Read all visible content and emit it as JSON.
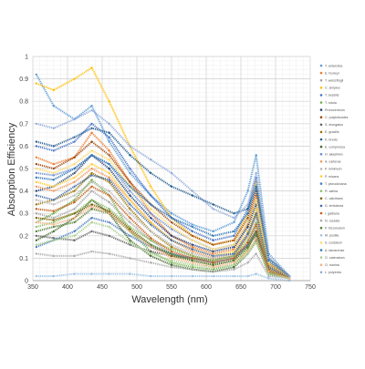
{
  "chart_data": {
    "type": "line",
    "title": "",
    "xlabel": "Wavelength (nm)",
    "ylabel": "Absorption Efficiency",
    "xlim": [
      350,
      750
    ],
    "ylim": [
      0,
      1
    ],
    "xticks": [
      350,
      400,
      450,
      500,
      550,
      600,
      650,
      700,
      750
    ],
    "yticks": [
      0,
      0.1,
      0.2,
      0.3,
      0.4,
      0.5,
      0.6,
      0.7,
      0.8,
      0.9,
      1
    ],
    "grid": true,
    "legend_position": "right",
    "series": [
      {
        "name": "T. antarctica",
        "color": "#5b9bd5",
        "x": [
          355,
          380,
          410,
          435,
          460,
          490,
          520,
          550,
          580,
          610,
          640,
          660,
          672,
          690,
          720
        ],
        "values": [
          0.92,
          0.78,
          0.72,
          0.78,
          0.62,
          0.48,
          0.38,
          0.3,
          0.25,
          0.22,
          0.26,
          0.4,
          0.56,
          0.12,
          0.02
        ]
      },
      {
        "name": "E. huxleyi",
        "color": "#ed7d31",
        "x": [
          355,
          380,
          410,
          435,
          460,
          490,
          520,
          550,
          580,
          610,
          640,
          660,
          672,
          690,
          720
        ],
        "values": [
          0.55,
          0.52,
          0.55,
          0.66,
          0.58,
          0.44,
          0.3,
          0.2,
          0.15,
          0.12,
          0.14,
          0.25,
          0.38,
          0.08,
          0.01
        ]
      },
      {
        "name": "T. weissflogii",
        "color": "#a5a5a5",
        "x": [
          355,
          380,
          410,
          435,
          460,
          490,
          520,
          550,
          580,
          610,
          640,
          660,
          672,
          690,
          720
        ],
        "values": [
          0.3,
          0.28,
          0.32,
          0.4,
          0.35,
          0.26,
          0.18,
          0.12,
          0.09,
          0.07,
          0.09,
          0.16,
          0.24,
          0.05,
          0.01
        ]
      },
      {
        "name": "C. simplex",
        "color": "#ffc000",
        "x": [
          355,
          380,
          410,
          435,
          460,
          490,
          520,
          550,
          580,
          610,
          640,
          660,
          672,
          690,
          720
        ],
        "values": [
          0.88,
          0.85,
          0.9,
          0.95,
          0.8,
          0.6,
          0.42,
          0.28,
          0.2,
          0.16,
          0.18,
          0.3,
          0.44,
          0.1,
          0.02
        ]
      },
      {
        "name": "T. sessilis",
        "color": "#4472c4",
        "x": [
          355,
          380,
          410,
          435,
          460,
          490,
          520,
          550,
          580,
          610,
          640,
          660,
          672,
          690,
          720
        ],
        "values": [
          0.6,
          0.58,
          0.62,
          0.7,
          0.64,
          0.5,
          0.38,
          0.28,
          0.22,
          0.18,
          0.2,
          0.32,
          0.46,
          0.1,
          0.02
        ]
      },
      {
        "name": "T. rotula",
        "color": "#70ad47",
        "x": [
          355,
          380,
          410,
          435,
          460,
          490,
          520,
          550,
          580,
          610,
          640,
          660,
          672,
          690,
          720
        ],
        "values": [
          0.26,
          0.3,
          0.36,
          0.45,
          0.38,
          0.22,
          0.13,
          0.08,
          0.06,
          0.05,
          0.07,
          0.14,
          0.22,
          0.04,
          0.01
        ]
      },
      {
        "name": "Prorocentrum",
        "color": "#264478",
        "x": [
          355,
          380,
          410,
          435,
          460,
          490,
          520,
          550,
          580,
          610,
          640,
          660,
          672,
          690,
          720
        ],
        "values": [
          0.4,
          0.42,
          0.48,
          0.56,
          0.5,
          0.38,
          0.28,
          0.2,
          0.16,
          0.13,
          0.15,
          0.24,
          0.34,
          0.07,
          0.01
        ]
      },
      {
        "name": "C. polykrikoides",
        "color": "#9e480e",
        "x": [
          355,
          380,
          410,
          435,
          460,
          490,
          520,
          550,
          580,
          610,
          640,
          660,
          672,
          690,
          720
        ],
        "values": [
          0.52,
          0.5,
          0.55,
          0.62,
          0.56,
          0.44,
          0.34,
          0.26,
          0.2,
          0.16,
          0.18,
          0.28,
          0.4,
          0.08,
          0.02
        ]
      },
      {
        "name": "S. elongatus",
        "color": "#636363",
        "x": [
          355,
          380,
          410,
          435,
          460,
          490,
          520,
          550,
          580,
          610,
          640,
          660,
          672,
          690,
          720
        ],
        "values": [
          0.2,
          0.19,
          0.18,
          0.22,
          0.2,
          0.16,
          0.13,
          0.11,
          0.1,
          0.09,
          0.11,
          0.16,
          0.2,
          0.04,
          0.01
        ]
      },
      {
        "name": "E. gracilis",
        "color": "#997300",
        "x": [
          355,
          380,
          410,
          435,
          460,
          490,
          520,
          550,
          580,
          610,
          640,
          660,
          672,
          690,
          720
        ],
        "values": [
          0.34,
          0.36,
          0.4,
          0.48,
          0.44,
          0.32,
          0.22,
          0.15,
          0.11,
          0.09,
          0.11,
          0.2,
          0.3,
          0.06,
          0.01
        ]
      },
      {
        "name": "K. brevis",
        "color": "#255e91",
        "x": [
          355,
          380,
          410,
          435,
          460,
          490,
          520,
          550,
          580,
          610,
          640,
          660,
          672,
          690,
          720
        ],
        "values": [
          0.62,
          0.6,
          0.64,
          0.68,
          0.66,
          0.56,
          0.48,
          0.42,
          0.38,
          0.34,
          0.3,
          0.32,
          0.42,
          0.1,
          0.02
        ]
      },
      {
        "name": "E. compressa",
        "color": "#43682b",
        "x": [
          355,
          380,
          410,
          435,
          460,
          490,
          520,
          550,
          580,
          610,
          640,
          660,
          672,
          690,
          720
        ],
        "values": [
          0.18,
          0.22,
          0.28,
          0.36,
          0.3,
          0.18,
          0.11,
          0.07,
          0.05,
          0.04,
          0.06,
          0.12,
          0.18,
          0.03,
          0.01
        ]
      },
      {
        "name": "H. akashiwo",
        "color": "#698ed0",
        "x": [
          355,
          380,
          410,
          435,
          460,
          490,
          520,
          550,
          580,
          610,
          640,
          660,
          672,
          690,
          720
        ],
        "values": [
          0.48,
          0.47,
          0.5,
          0.56,
          0.52,
          0.4,
          0.3,
          0.23,
          0.18,
          0.14,
          0.16,
          0.26,
          0.36,
          0.08,
          0.02
        ]
      },
      {
        "name": "A. carterae",
        "color": "#f1975a",
        "x": [
          355,
          380,
          410,
          435,
          460,
          490,
          520,
          550,
          580,
          610,
          640,
          660,
          672,
          690,
          720
        ],
        "values": [
          0.42,
          0.4,
          0.44,
          0.5,
          0.46,
          0.36,
          0.26,
          0.18,
          0.13,
          0.1,
          0.12,
          0.2,
          0.3,
          0.06,
          0.01
        ]
      },
      {
        "name": "P. minimum",
        "color": "#b7b7b7",
        "x": [
          355,
          380,
          410,
          435,
          460,
          490,
          520,
          550,
          580,
          610,
          640,
          660,
          672,
          690,
          720
        ],
        "values": [
          0.36,
          0.34,
          0.38,
          0.44,
          0.4,
          0.3,
          0.22,
          0.16,
          0.12,
          0.1,
          0.12,
          0.2,
          0.28,
          0.06,
          0.01
        ]
      },
      {
        "name": "P. micans",
        "color": "#ffcd33",
        "x": [
          355,
          380,
          410,
          435,
          460,
          490,
          520,
          550,
          580,
          610,
          640,
          660,
          672,
          690,
          720
        ],
        "values": [
          0.44,
          0.42,
          0.46,
          0.52,
          0.48,
          0.36,
          0.26,
          0.18,
          0.14,
          0.11,
          0.13,
          0.22,
          0.32,
          0.07,
          0.01
        ]
      },
      {
        "name": "T. pseudonana",
        "color": "#4a7cc0",
        "x": [
          355,
          380,
          410,
          435,
          460,
          490,
          520,
          550,
          580,
          610,
          640,
          660,
          672,
          690,
          720
        ],
        "values": [
          0.15,
          0.18,
          0.22,
          0.28,
          0.26,
          0.2,
          0.15,
          0.12,
          0.1,
          0.08,
          0.1,
          0.16,
          0.22,
          0.04,
          0.01
        ]
      },
      {
        "name": "R. salina",
        "color": "#8cc168",
        "x": [
          355,
          380,
          410,
          435,
          460,
          490,
          520,
          550,
          580,
          610,
          640,
          660,
          672,
          690,
          720
        ],
        "values": [
          0.24,
          0.26,
          0.3,
          0.36,
          0.32,
          0.24,
          0.18,
          0.14,
          0.11,
          0.09,
          0.11,
          0.18,
          0.26,
          0.05,
          0.01
        ]
      },
      {
        "name": "C. calcitrans",
        "color": "#7f6000",
        "x": [
          355,
          380,
          410,
          435,
          460,
          490,
          520,
          550,
          580,
          610,
          640,
          660,
          672,
          690,
          720
        ],
        "values": [
          0.28,
          0.27,
          0.3,
          0.34,
          0.31,
          0.23,
          0.16,
          0.11,
          0.09,
          0.07,
          0.09,
          0.15,
          0.22,
          0.04,
          0.01
        ]
      },
      {
        "name": "D. tertiolecta",
        "color": "#3f6aa7",
        "x": [
          355,
          380,
          410,
          435,
          460,
          490,
          520,
          550,
          580,
          610,
          640,
          660,
          672,
          690,
          720
        ],
        "values": [
          0.38,
          0.36,
          0.42,
          0.47,
          0.45,
          0.34,
          0.25,
          0.18,
          0.14,
          0.11,
          0.12,
          0.21,
          0.3,
          0.06,
          0.01
        ]
      },
      {
        "name": "I. galbana",
        "color": "#c55a11",
        "x": [
          355,
          380,
          410,
          435,
          460,
          490,
          520,
          550,
          580,
          610,
          640,
          660,
          672,
          690,
          720
        ],
        "values": [
          0.32,
          0.31,
          0.35,
          0.42,
          0.38,
          0.28,
          0.19,
          0.13,
          0.1,
          0.08,
          0.1,
          0.17,
          0.25,
          0.05,
          0.01
        ]
      },
      {
        "name": "N. oculata",
        "color": "#ababab",
        "x": [
          355,
          380,
          410,
          435,
          460,
          490,
          520,
          550,
          580,
          610,
          640,
          660,
          672,
          690,
          720
        ],
        "values": [
          0.12,
          0.11,
          0.11,
          0.13,
          0.12,
          0.1,
          0.08,
          0.06,
          0.05,
          0.04,
          0.05,
          0.08,
          0.12,
          0.02,
          0.01
        ]
      },
      {
        "name": "P. tricornutum",
        "color": "#548235",
        "x": [
          355,
          380,
          410,
          435,
          460,
          490,
          520,
          550,
          580,
          610,
          640,
          660,
          672,
          690,
          720
        ],
        "values": [
          0.22,
          0.24,
          0.26,
          0.32,
          0.3,
          0.22,
          0.16,
          0.12,
          0.09,
          0.07,
          0.09,
          0.15,
          0.21,
          0.04,
          0.01
        ]
      },
      {
        "name": "M. pusilla",
        "color": "#9dc3e6",
        "x": [
          355,
          380,
          410,
          435,
          460,
          490,
          520,
          550,
          580,
          610,
          640,
          660,
          672,
          690,
          720
        ],
        "values": [
          0.02,
          0.02,
          0.03,
          0.03,
          0.03,
          0.03,
          0.02,
          0.02,
          0.02,
          0.02,
          0.02,
          0.02,
          0.03,
          0.01,
          0.0
        ]
      },
      {
        "name": "S. costatum",
        "color": "#ffd966",
        "x": [
          355,
          380,
          410,
          435,
          460,
          490,
          520,
          550,
          580,
          610,
          640,
          660,
          672,
          690,
          720
        ],
        "values": [
          0.5,
          0.48,
          0.52,
          0.58,
          0.54,
          0.42,
          0.32,
          0.24,
          0.18,
          0.14,
          0.16,
          0.26,
          0.36,
          0.08,
          0.02
        ]
      },
      {
        "name": "A. tamarense",
        "color": "#2e75b6",
        "x": [
          355,
          380,
          410,
          435,
          460,
          490,
          520,
          550,
          580,
          610,
          640,
          660,
          672,
          690,
          720
        ],
        "values": [
          0.46,
          0.45,
          0.5,
          0.56,
          0.52,
          0.42,
          0.34,
          0.28,
          0.24,
          0.2,
          0.22,
          0.3,
          0.42,
          0.09,
          0.02
        ]
      },
      {
        "name": "G. catenatum",
        "color": "#a9d18e",
        "x": [
          355,
          380,
          410,
          435,
          460,
          490,
          520,
          550,
          580,
          610,
          640,
          660,
          672,
          690,
          720
        ],
        "values": [
          0.16,
          0.18,
          0.2,
          0.26,
          0.24,
          0.17,
          0.12,
          0.09,
          0.07,
          0.06,
          0.07,
          0.12,
          0.17,
          0.03,
          0.01
        ]
      },
      {
        "name": "O. marina",
        "color": "#f4b183",
        "x": [
          355,
          380,
          410,
          435,
          460,
          490,
          520,
          550,
          580,
          610,
          640,
          660,
          672,
          690,
          720
        ],
        "values": [
          0.26,
          0.25,
          0.28,
          0.33,
          0.3,
          0.22,
          0.15,
          0.1,
          0.08,
          0.06,
          0.08,
          0.13,
          0.19,
          0.04,
          0.01
        ]
      },
      {
        "name": "L. polyedra",
        "color": "#8faadc",
        "x": [
          355,
          380,
          410,
          435,
          460,
          490,
          520,
          550,
          580,
          610,
          640,
          660,
          672,
          690,
          720
        ],
        "values": [
          0.7,
          0.68,
          0.72,
          0.76,
          0.7,
          0.6,
          0.54,
          0.48,
          0.4,
          0.32,
          0.28,
          0.34,
          0.48,
          0.1,
          0.02
        ]
      }
    ]
  }
}
